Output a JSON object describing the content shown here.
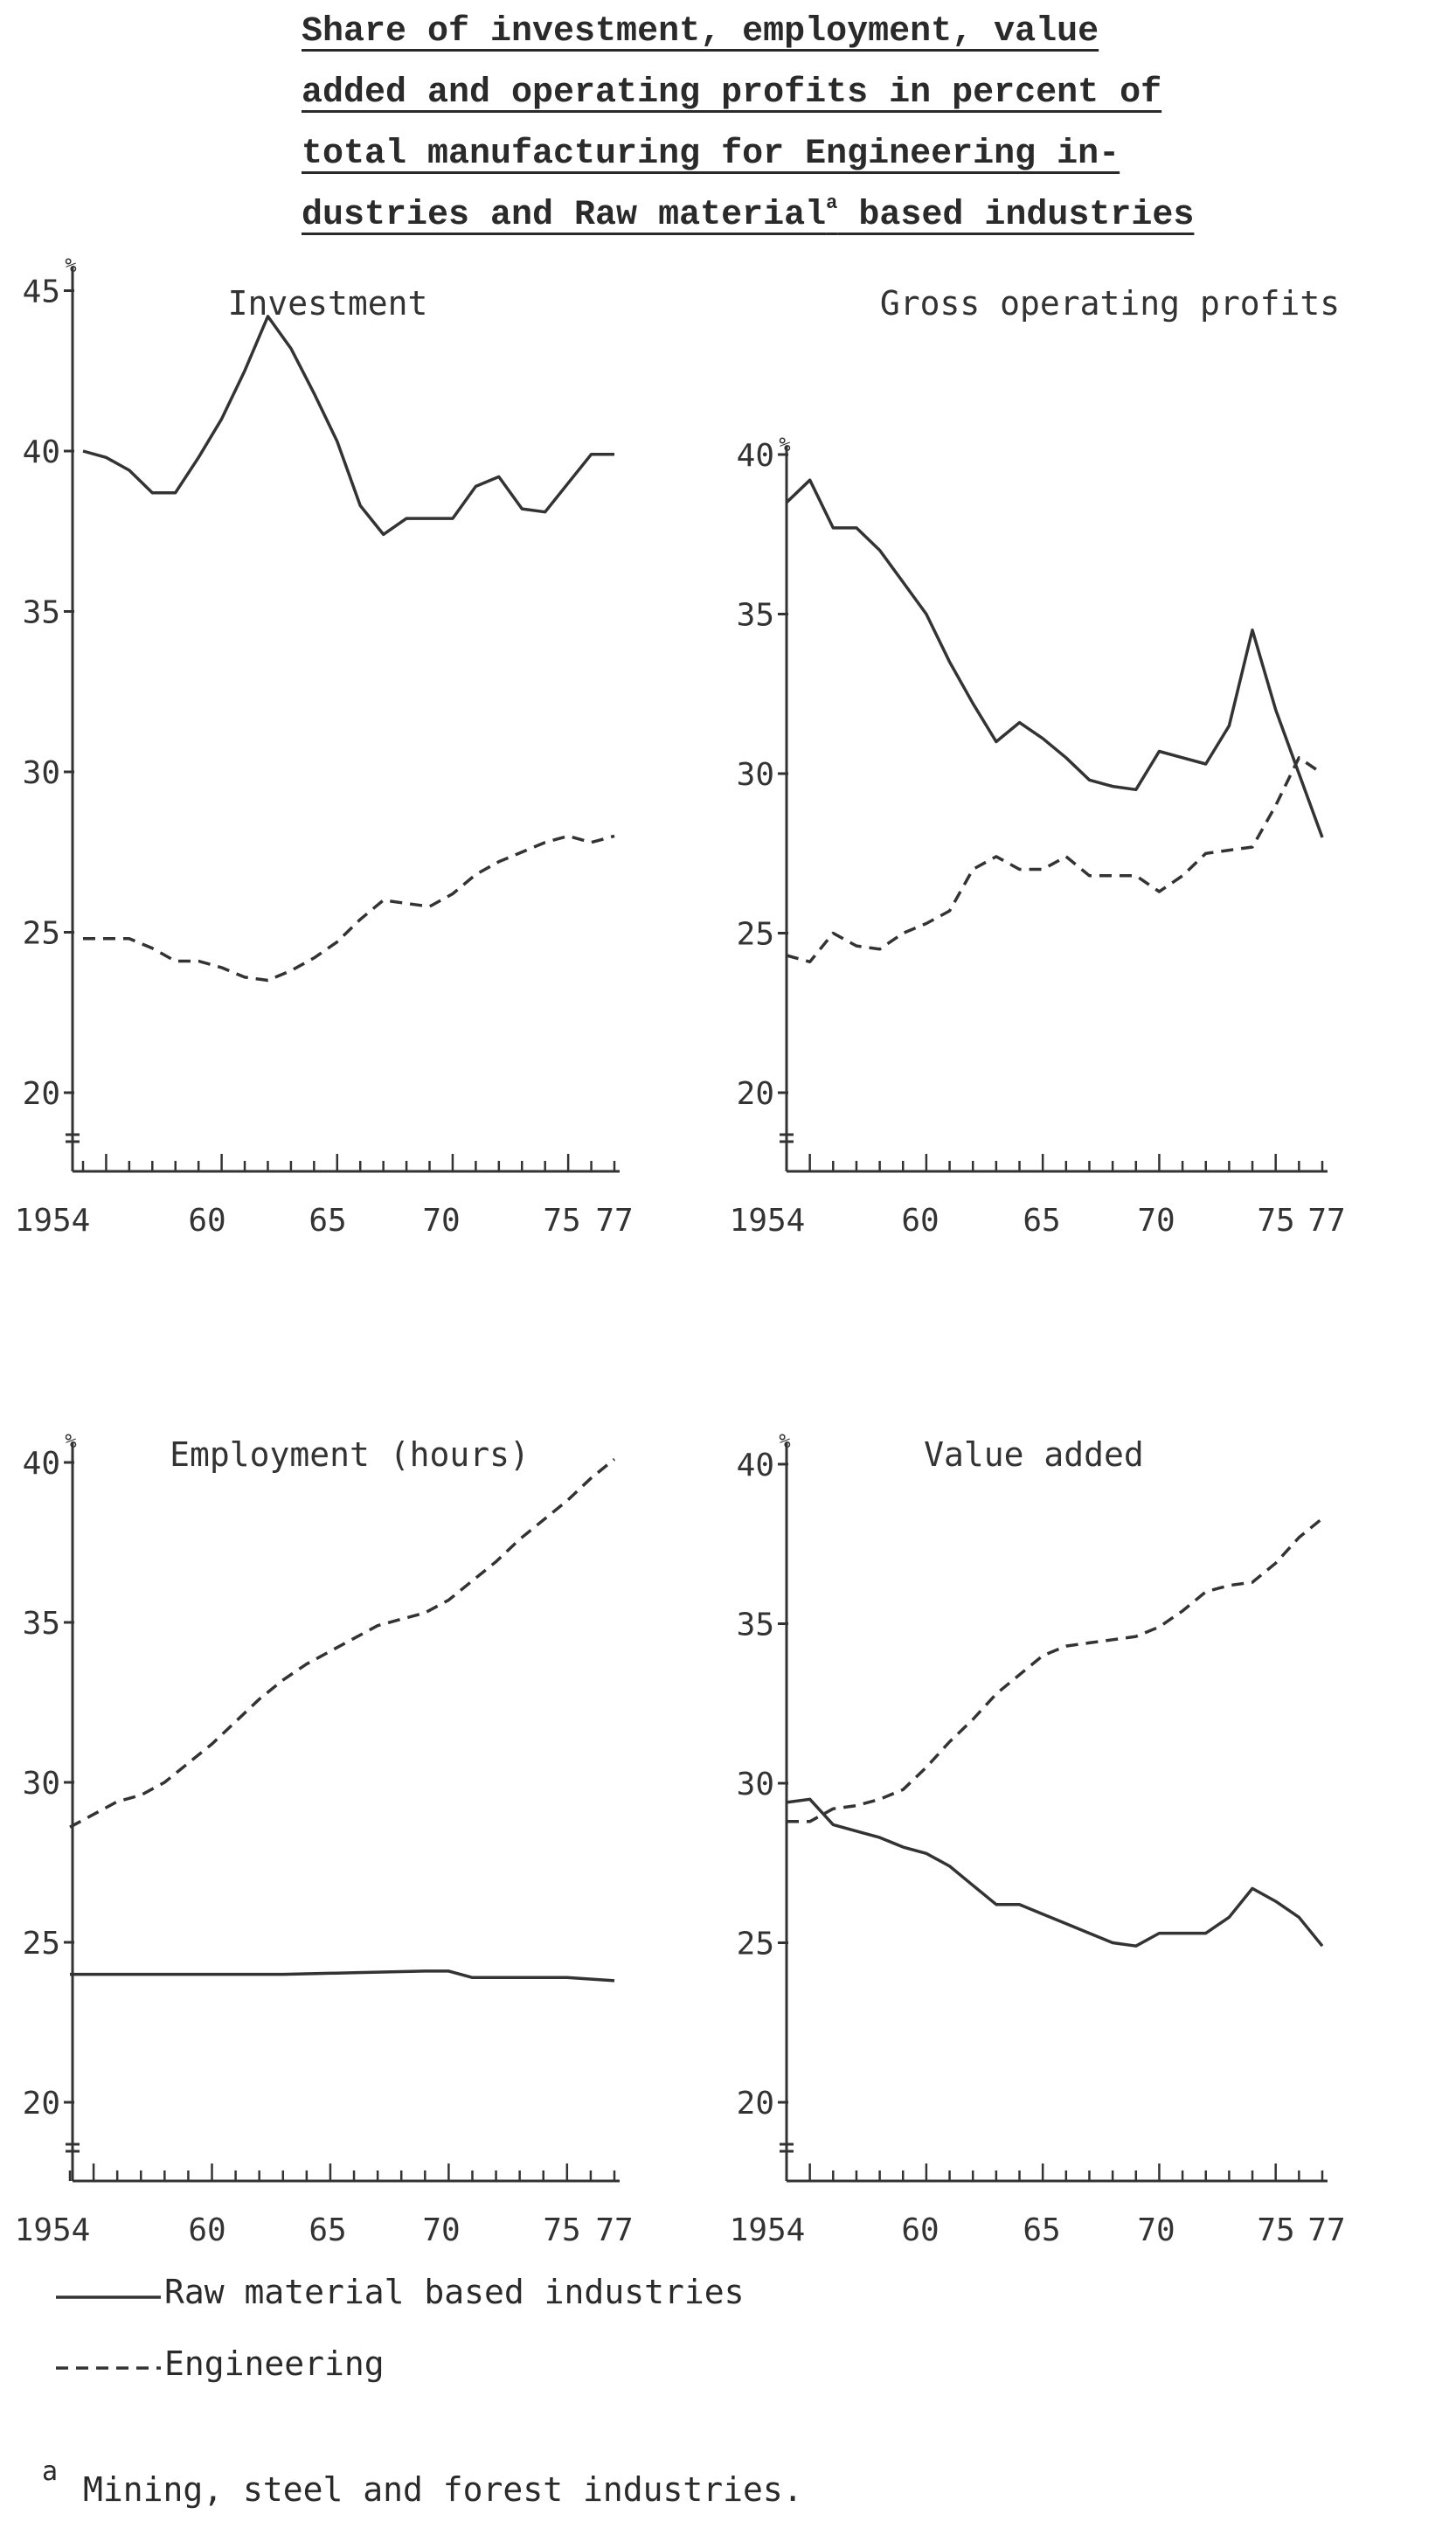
{
  "figure": {
    "title_lines": [
      "Share of investment, employment, value",
      "added and operating profits in percent of",
      "total manufacturing for Engineering in-",
      "dustries and Raw material"
    ],
    "title_mark": "a",
    "title_tail": " based industries"
  },
  "legend": [
    {
      "label": "Raw material based industries",
      "style": "solid"
    },
    {
      "label": "Engineering",
      "style": "dashed"
    }
  ],
  "footnote": {
    "mark": "a",
    "text": "Mining, steel and forest industries."
  },
  "chart_data": [
    {
      "type": "line",
      "title": "Investment",
      "ylabel": "%",
      "ylim": [
        18,
        45
      ],
      "yticks": [
        20,
        25,
        30,
        35,
        40,
        45
      ],
      "xlim": [
        1954,
        1977
      ],
      "xtick_labels": [
        {
          "x": 1954,
          "label": "1954"
        },
        {
          "x": 1960,
          "label": "60"
        },
        {
          "x": 1965,
          "label": "65"
        },
        {
          "x": 1970,
          "label": "70"
        },
        {
          "x": 1975,
          "label": "75"
        },
        {
          "x": 1977,
          "label": "77"
        }
      ],
      "series": [
        {
          "legend_index": 0,
          "style": "solid",
          "color": "#333333",
          "x": [
            1954,
            1955,
            1956,
            1957,
            1958,
            1959,
            1960,
            1961,
            1962,
            1963,
            1964,
            1965,
            1966,
            1967,
            1968,
            1969,
            1970,
            1971,
            1972,
            1973,
            1974,
            1975,
            1976,
            1977
          ],
          "values": [
            40.0,
            39.8,
            39.4,
            38.7,
            38.7,
            39.8,
            41.0,
            42.5,
            44.2,
            43.2,
            41.8,
            40.3,
            38.3,
            37.4,
            37.9,
            37.9,
            37.9,
            38.9,
            39.2,
            38.2,
            38.1,
            39.0,
            39.9,
            39.9
          ]
        },
        {
          "legend_index": 1,
          "style": "dashed",
          "color": "#333333",
          "x": [
            1954,
            1955,
            1956,
            1957,
            1958,
            1959,
            1960,
            1961,
            1962,
            1963,
            1964,
            1965,
            1966,
            1967,
            1968,
            1969,
            1970,
            1971,
            1972,
            1973,
            1974,
            1975,
            1976,
            1977
          ],
          "values": [
            24.8,
            24.8,
            24.8,
            24.5,
            24.1,
            24.1,
            23.9,
            23.6,
            23.5,
            23.8,
            24.2,
            24.7,
            25.4,
            26.0,
            25.9,
            25.8,
            26.2,
            26.8,
            27.2,
            27.5,
            27.8,
            28.0,
            27.8,
            28.0
          ]
        }
      ]
    },
    {
      "type": "line",
      "title": "Gross operating profits",
      "ylabel": "%",
      "ylim": [
        18,
        40
      ],
      "yticks": [
        20,
        25,
        30,
        35,
        40
      ],
      "xlim": [
        1954,
        1977
      ],
      "xtick_labels": [
        {
          "x": 1954,
          "label": "1954"
        },
        {
          "x": 1960,
          "label": "60"
        },
        {
          "x": 1965,
          "label": "65"
        },
        {
          "x": 1970,
          "label": "70"
        },
        {
          "x": 1975,
          "label": "75"
        },
        {
          "x": 1977,
          "label": "77"
        }
      ],
      "series": [
        {
          "legend_index": 0,
          "style": "solid",
          "color": "#333333",
          "x": [
            1954,
            1955,
            1956,
            1957,
            1958,
            1959,
            1960,
            1961,
            1962,
            1963,
            1964,
            1965,
            1966,
            1967,
            1968,
            1969,
            1970,
            1971,
            1972,
            1973,
            1974,
            1975,
            1976,
            1977
          ],
          "values": [
            38.5,
            39.2,
            37.7,
            37.7,
            37.0,
            36.0,
            35.0,
            33.5,
            32.2,
            31.0,
            31.6,
            31.1,
            30.5,
            29.8,
            29.6,
            29.5,
            30.7,
            30.5,
            30.3,
            31.5,
            34.5,
            32.0,
            30.0,
            28.0
          ]
        },
        {
          "legend_index": 1,
          "style": "dashed",
          "color": "#333333",
          "x": [
            1954,
            1955,
            1956,
            1957,
            1958,
            1959,
            1960,
            1961,
            1962,
            1963,
            1964,
            1965,
            1966,
            1967,
            1968,
            1969,
            1970,
            1971,
            1972,
            1973,
            1974,
            1975,
            1976,
            1977
          ],
          "values": [
            24.3,
            24.1,
            25.0,
            24.6,
            24.5,
            25.0,
            25.3,
            25.7,
            27.0,
            27.4,
            27.0,
            27.0,
            27.4,
            26.8,
            26.8,
            26.8,
            26.3,
            26.8,
            27.5,
            27.6,
            27.7,
            29.0,
            30.5,
            30.0
          ]
        }
      ]
    },
    {
      "type": "line",
      "title": "Employment (hours)",
      "ylabel": "%",
      "ylim": [
        18,
        40
      ],
      "yticks": [
        20,
        25,
        30,
        35,
        40
      ],
      "xlim": [
        1954,
        1977
      ],
      "xtick_labels": [
        {
          "x": 1954,
          "label": "1954"
        },
        {
          "x": 1960,
          "label": "60"
        },
        {
          "x": 1965,
          "label": "65"
        },
        {
          "x": 1970,
          "label": "70"
        },
        {
          "x": 1975,
          "label": "75"
        },
        {
          "x": 1977,
          "label": "77"
        }
      ],
      "series": [
        {
          "legend_index": 0,
          "style": "solid",
          "color": "#333333",
          "x": [
            1954,
            1957,
            1960,
            1963,
            1966,
            1969,
            1970,
            1971,
            1973,
            1975,
            1977
          ],
          "values": [
            24.0,
            24.0,
            24.0,
            24.0,
            24.05,
            24.1,
            24.1,
            23.9,
            23.9,
            23.9,
            23.8
          ]
        },
        {
          "legend_index": 1,
          "style": "dashed",
          "color": "#333333",
          "x": [
            1954,
            1955,
            1956,
            1957,
            1958,
            1959,
            1960,
            1961,
            1962,
            1963,
            1964,
            1965,
            1966,
            1967,
            1968,
            1969,
            1970,
            1971,
            1972,
            1973,
            1974,
            1975,
            1976,
            1977
          ],
          "values": [
            28.6,
            29.0,
            29.4,
            29.6,
            30.0,
            30.6,
            31.2,
            31.9,
            32.6,
            33.2,
            33.7,
            34.1,
            34.5,
            34.9,
            35.1,
            35.3,
            35.7,
            36.3,
            36.9,
            37.6,
            38.2,
            38.8,
            39.5,
            40.1
          ]
        }
      ]
    },
    {
      "type": "line",
      "title": "Value added",
      "ylabel": "%",
      "ylim": [
        18,
        40
      ],
      "yticks": [
        20,
        25,
        30,
        35,
        40
      ],
      "xlim": [
        1954,
        1977
      ],
      "xtick_labels": [
        {
          "x": 1954,
          "label": "1954"
        },
        {
          "x": 1960,
          "label": "60"
        },
        {
          "x": 1965,
          "label": "65"
        },
        {
          "x": 1970,
          "label": "70"
        },
        {
          "x": 1975,
          "label": "75"
        },
        {
          "x": 1977,
          "label": "77"
        }
      ],
      "series": [
        {
          "legend_index": 0,
          "style": "solid",
          "color": "#333333",
          "x": [
            1954,
            1955,
            1956,
            1957,
            1958,
            1959,
            1960,
            1961,
            1962,
            1963,
            1964,
            1965,
            1966,
            1967,
            1968,
            1969,
            1970,
            1971,
            1972,
            1973,
            1974,
            1975,
            1976,
            1977
          ],
          "values": [
            29.4,
            29.5,
            28.7,
            28.5,
            28.3,
            28.0,
            27.8,
            27.4,
            26.8,
            26.2,
            26.2,
            25.9,
            25.6,
            25.3,
            25.0,
            24.9,
            25.3,
            25.3,
            25.3,
            25.8,
            26.7,
            26.3,
            25.8,
            24.9
          ]
        },
        {
          "legend_index": 1,
          "style": "dashed",
          "color": "#333333",
          "x": [
            1954,
            1955,
            1956,
            1957,
            1958,
            1959,
            1960,
            1961,
            1962,
            1963,
            1964,
            1965,
            1966,
            1967,
            1968,
            1969,
            1970,
            1971,
            1972,
            1973,
            1974,
            1975,
            1976,
            1977
          ],
          "values": [
            28.8,
            28.8,
            29.2,
            29.3,
            29.5,
            29.8,
            30.5,
            31.3,
            32.0,
            32.8,
            33.4,
            34.0,
            34.3,
            34.4,
            34.5,
            34.6,
            34.9,
            35.4,
            36.0,
            36.2,
            36.3,
            36.9,
            37.7,
            38.3
          ]
        }
      ]
    }
  ]
}
